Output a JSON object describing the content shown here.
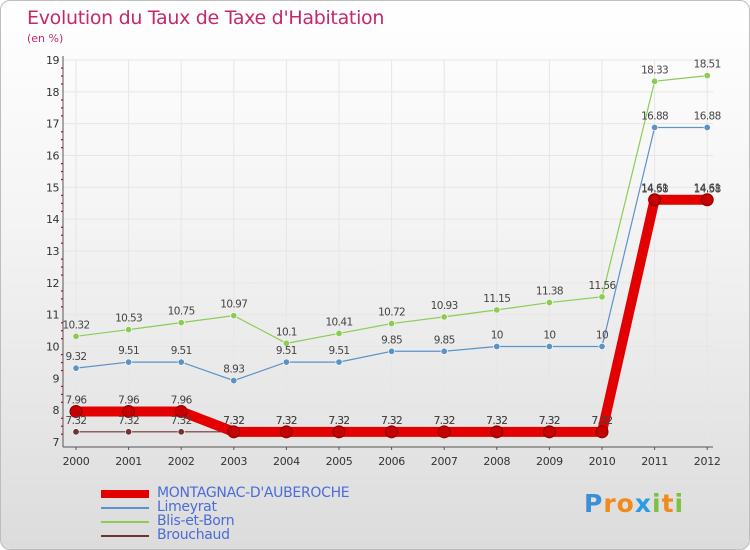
{
  "title": "Evolution du Taux de Taxe d'Habitation",
  "subtitle": "(en %)",
  "logo": {
    "chars": [
      "P",
      "r",
      "o",
      "x",
      "i",
      "t",
      "i"
    ],
    "colors": [
      "#3a8fd6",
      "#f28a1b",
      "#f28a1b",
      "#2a9de0",
      "#7cc242",
      "#f28a1b",
      "#7cc242"
    ]
  },
  "chart_data": {
    "type": "line",
    "title": "Evolution du Taux de Taxe d'Habitation",
    "ylabel": "(en %)",
    "xlabel": "",
    "ylim": [
      7,
      19
    ],
    "yticks": [
      "7",
      "8",
      "9",
      "10",
      "11",
      "12",
      "13",
      "14",
      "15",
      "16",
      "17",
      "18",
      "19"
    ],
    "categories": [
      "2000",
      "2001",
      "2002",
      "2003",
      "2004",
      "2005",
      "2006",
      "2007",
      "2008",
      "2009",
      "2010",
      "2011",
      "2012"
    ],
    "series": [
      {
        "name": "MONTAGNAC-D'AUBEROCHE",
        "color": "#e20000",
        "legend_color": "#4b6bd6",
        "thick": true,
        "values": [
          7.96,
          7.96,
          7.96,
          7.32,
          7.32,
          7.32,
          7.32,
          7.32,
          7.32,
          7.32,
          7.32,
          14.61,
          14.61
        ],
        "labels": [
          "7.96",
          "7.96",
          "7.96",
          "7.32",
          "7.32",
          "7.32",
          "7.32",
          "7.32",
          "7.32",
          "7.32",
          "7.32",
          "14.61",
          "14.61"
        ]
      },
      {
        "name": "Limeyrat",
        "color": "#5b92c7",
        "legend_color": "#4b6bd6",
        "values": [
          9.32,
          9.51,
          9.51,
          8.93,
          9.51,
          9.51,
          9.85,
          9.85,
          10,
          10,
          10,
          16.88,
          16.88
        ],
        "labels": [
          "9.32",
          "9.51",
          "9.51",
          "8.93",
          "9.51",
          "9.51",
          "9.85",
          "9.85",
          "10",
          "10",
          "10",
          "16.88",
          "16.88"
        ]
      },
      {
        "name": "Blis-et-Born",
        "color": "#8ccc55",
        "legend_color": "#4b6bd6",
        "values": [
          10.32,
          10.53,
          10.75,
          10.97,
          10.1,
          10.41,
          10.72,
          10.93,
          11.15,
          11.38,
          11.56,
          18.33,
          18.51
        ],
        "labels": [
          "10.32",
          "10.53",
          "10.75",
          "10.97",
          "10.1",
          "10.41",
          "10.72",
          "10.93",
          "11.15",
          "11.38",
          "11.56",
          "18.33",
          "18.51"
        ]
      },
      {
        "name": "Brouchaud",
        "color": "#6e3434",
        "legend_color": "#4b6bd6",
        "values": [
          7.32,
          7.32,
          7.32,
          7.32,
          7.32,
          7.32,
          7.32,
          7.32,
          7.32,
          7.32,
          7.32,
          14.58,
          14.58
        ],
        "labels": [
          "7.32",
          "7.32",
          "7.32",
          "7.32",
          "7.32",
          "7.32",
          "7.32",
          "7.32",
          "7.32",
          "7.32",
          "7.32",
          "14.58",
          "14.58"
        ]
      }
    ]
  }
}
